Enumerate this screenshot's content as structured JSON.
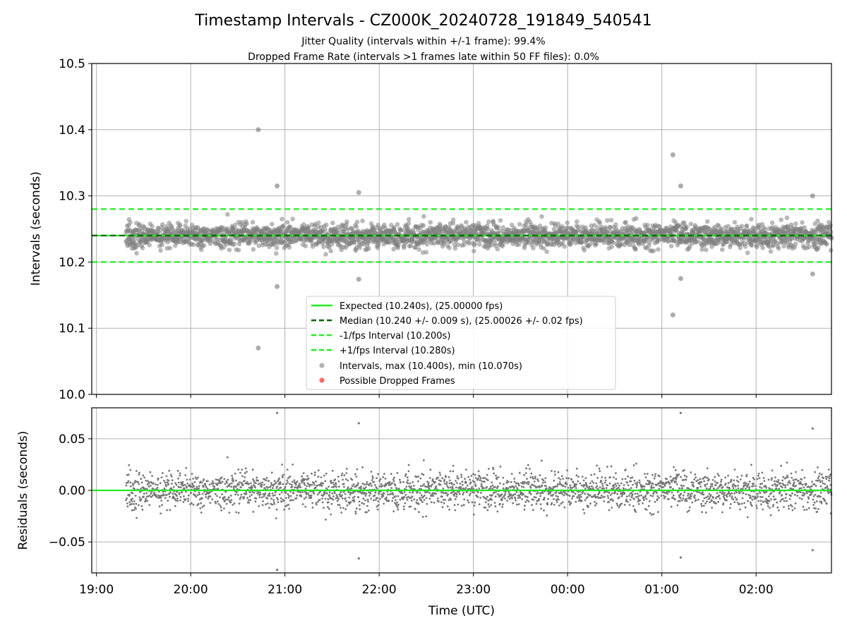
{
  "chart_data": [
    {
      "type": "scatter",
      "title": "Timestamp Intervals - CZ000K_20240728_191849_540541",
      "subtitles": [
        "Jitter Quality (intervals within +/-1 frame): 99.4%",
        "Dropped Frame Rate (intervals >1 frames late within 50 FF files): 0.0%"
      ],
      "ylabel": "Intervals (seconds)",
      "ylim": [
        10.0,
        10.5
      ],
      "yticks": [
        "10.0",
        "10.1",
        "10.2",
        "10.3",
        "10.4",
        "10.5"
      ],
      "xlim": [
        "2024-07-28T18:57",
        "2024-07-29T02:48"
      ],
      "grid": true,
      "legend_position": "lower-center",
      "data_start": "2024-07-28T19:18:49",
      "data_end": "2024-07-29T02:48",
      "interval_count_approx": 2650,
      "reference_lines": [
        {
          "name": "Expected (10.240s), (25.00000 fps)",
          "y": 10.24,
          "style": "solid",
          "color": "#22ee22"
        },
        {
          "name": "Median (10.240 +/- 0.009 s), (25.00026 +/- 0.02 fps)",
          "y": 10.24,
          "style": "dashed",
          "color": "#006400"
        },
        {
          "name": "-1/fps Interval (10.200s)",
          "y": 10.2,
          "style": "dashed",
          "color": "#22ee22"
        },
        {
          "name": "+1/fps Interval (10.280s)",
          "y": 10.28,
          "style": "dashed",
          "color": "#22ee22"
        }
      ],
      "series": [
        {
          "name": "Intervals, max (10.400s), min (10.070s)",
          "color": "#808080",
          "median": 10.24,
          "spread_sd": 0.009,
          "max": 10.4,
          "min": 10.07
        },
        {
          "name": "Possible Dropped Frames",
          "color": "#ff4444",
          "count": 0
        }
      ],
      "outliers": [
        {
          "x": "2024-07-28T20:43",
          "y": 10.4
        },
        {
          "x": "2024-07-28T20:43",
          "y": 10.07
        },
        {
          "x": "2024-07-28T20:55",
          "y": 10.315
        },
        {
          "x": "2024-07-28T20:55",
          "y": 10.163
        },
        {
          "x": "2024-07-28T21:47",
          "y": 10.305
        },
        {
          "x": "2024-07-28T21:47",
          "y": 10.174
        },
        {
          "x": "2024-07-29T01:07",
          "y": 10.362
        },
        {
          "x": "2024-07-29T01:07",
          "y": 10.12
        },
        {
          "x": "2024-07-29T01:12",
          "y": 10.315
        },
        {
          "x": "2024-07-29T01:12",
          "y": 10.175
        },
        {
          "x": "2024-07-29T02:36",
          "y": 10.3
        },
        {
          "x": "2024-07-29T02:36",
          "y": 10.182
        }
      ]
    },
    {
      "type": "scatter",
      "ylabel": "Residuals (seconds)",
      "xlabel": "Time (UTC)",
      "ylim": [
        -0.08,
        0.08
      ],
      "yticks": [
        "−0.05",
        "0.00",
        "0.05"
      ],
      "ytick_values": [
        -0.05,
        0.0,
        0.05
      ],
      "xticks": [
        "19:00",
        "20:00",
        "21:00",
        "22:00",
        "23:00",
        "00:00",
        "01:00",
        "02:00"
      ],
      "xlim": [
        "2024-07-28T18:57",
        "2024-07-29T02:48"
      ],
      "grid": true,
      "reference_line": {
        "y": 0.0,
        "color": "#22ee22"
      },
      "series": [
        {
          "name": "Residuals",
          "color": "#777777",
          "spread_sd": 0.009
        }
      ],
      "outliers": [
        {
          "x": "2024-07-28T20:55",
          "y": 0.075
        },
        {
          "x": "2024-07-28T20:55",
          "y": -0.077
        },
        {
          "x": "2024-07-28T21:47",
          "y": 0.065
        },
        {
          "x": "2024-07-28T21:47",
          "y": -0.066
        },
        {
          "x": "2024-07-29T01:12",
          "y": 0.075
        },
        {
          "x": "2024-07-29T01:12",
          "y": -0.065
        },
        {
          "x": "2024-07-29T02:36",
          "y": 0.06
        },
        {
          "x": "2024-07-29T02:36",
          "y": -0.058
        }
      ]
    }
  ],
  "colors": {
    "expected": "#22ee22",
    "median": "#006400",
    "points": "#808080",
    "dropped": "#ff4444",
    "grid": "#b0b0b0"
  }
}
